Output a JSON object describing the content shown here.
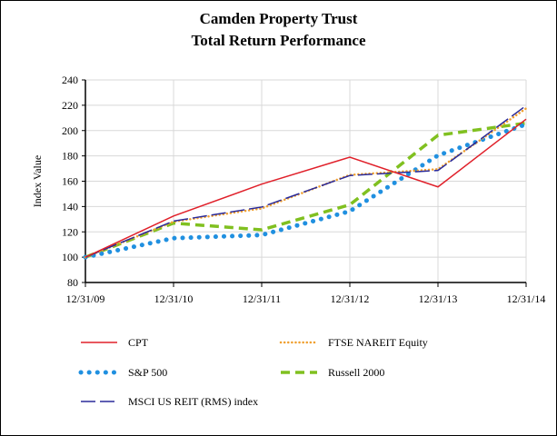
{
  "chart_data": {
    "type": "line",
    "title": [
      "Camden Property Trust",
      "Total Return Performance"
    ],
    "xlabel": "",
    "ylabel": "Index Value",
    "categories": [
      "12/31/09",
      "12/31/10",
      "12/31/11",
      "12/31/12",
      "12/31/13",
      "12/31/14"
    ],
    "ylim": [
      80,
      240
    ],
    "yticks": [
      80,
      100,
      120,
      140,
      160,
      180,
      200,
      220,
      240
    ],
    "grid": true,
    "legend_position": "bottom",
    "series": [
      {
        "name": "CPT",
        "color": "#e0202a",
        "style": "solid",
        "values": [
          100,
          132.5,
          157.7,
          179,
          155.5,
          209
        ]
      },
      {
        "name": "FTSE NAREIT Equity",
        "color": "#f0a030",
        "style": "dotted",
        "values": [
          100,
          128,
          138.5,
          165,
          169.5,
          217.5
        ]
      },
      {
        "name": "S&P 500",
        "color": "#2090e0",
        "style": "bigdots",
        "values": [
          100,
          115,
          117.5,
          136.3,
          180.4,
          205
        ]
      },
      {
        "name": "Russell 2000",
        "color": "#80c020",
        "style": "dashed",
        "values": [
          100,
          126.9,
          121.6,
          141.4,
          196.3,
          205.9
        ]
      },
      {
        "name": "MSCI US REIT (RMS) index",
        "color": "#2a2a9a",
        "style": "longdash",
        "values": [
          100,
          128.5,
          139.6,
          164.5,
          168.5,
          219.7
        ]
      }
    ]
  }
}
